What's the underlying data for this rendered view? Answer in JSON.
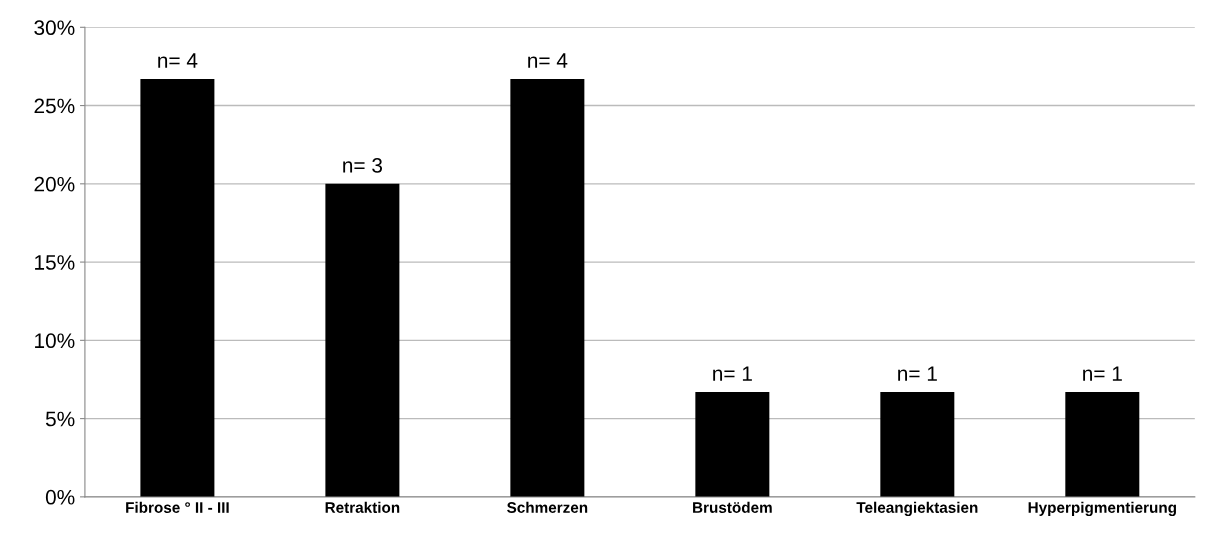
{
  "chart_data": {
    "type": "bar",
    "categories": [
      "Fibrose ° II - III",
      "Retraktion",
      "Schmerzen",
      "Brustödem",
      "Teleangiektasien",
      "Hyperpigmentierung"
    ],
    "values": [
      26.7,
      20,
      26.7,
      6.7,
      6.7,
      6.7
    ],
    "annotations": [
      {
        "text": "n= 4",
        "x": "Fibrose ° II - III",
        "y": 26.7
      },
      {
        "text": "n= 3",
        "x": "Retraktion",
        "y": 20
      },
      {
        "text": "n= 4",
        "x": "Schmerzen",
        "y": 26.7
      },
      {
        "text": "n= 1",
        "x": "Brustödem",
        "y": 6.7
      },
      {
        "text": "n= 1",
        "x": "Teleangiektasien",
        "y": 6.7
      },
      {
        "text": "n= 1",
        "x": "Hyperpigmentierung",
        "y": 6.7
      }
    ],
    "color": "#000000",
    "ylim": [
      0,
      30
    ],
    "yticks": [
      {
        "value": 0,
        "label": "0%"
      },
      {
        "value": 5,
        "label": "5%"
      },
      {
        "value": 10,
        "label": "10%"
      },
      {
        "value": 15,
        "label": "15%"
      },
      {
        "value": 20,
        "label": "20%"
      },
      {
        "value": 25,
        "label": "25%"
      },
      {
        "value": 30,
        "label": "30%"
      }
    ],
    "grid": "y"
  }
}
